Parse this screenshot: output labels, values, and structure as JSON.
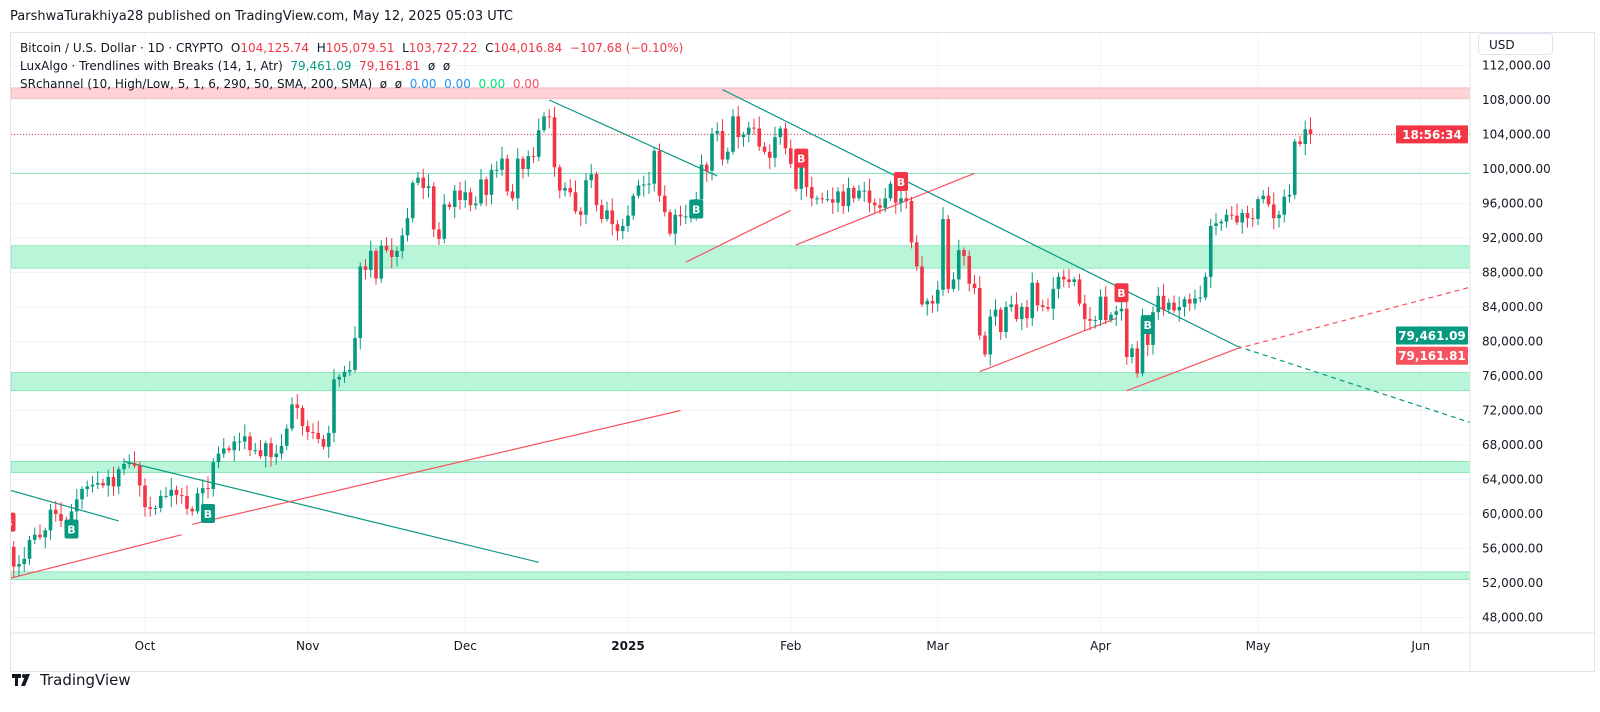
{
  "header": {
    "published": "ParshwaTurakhiya28 published on TradingView.com, May 12, 2025 05:03 UTC"
  },
  "legend": {
    "symbol": "Bitcoin / U.S. Dollar · 1D · CRYPTO",
    "o_label": "O",
    "o": "104,125.74",
    "h_label": "H",
    "h": "105,079.51",
    "l_label": "L",
    "l": "103,727.22",
    "c_label": "C",
    "c": "104,016.84",
    "change": "−107.68 (−0.10%)",
    "ind1_name": "LuxAlgo · Trendlines with Breaks (14, 1, Atr)",
    "ind1_v1": "79,461.09",
    "ind1_v2": "79,161.81",
    "ind1_v3": "ø",
    "ind1_v4": "ø",
    "ind2_name": "SRchannel (10, High/Low, 5, 1, 6, 290, 50, SMA, 200, SMA)",
    "ind2_v1": "ø",
    "ind2_v2": "ø",
    "ind2_v3": "0.00",
    "ind2_v4": "0.00",
    "ind2_v5": "0.00",
    "ind2_v6": "0.00"
  },
  "currency_button": "USD",
  "price_labels": {
    "countdown": "18:56:34",
    "upper_trend": "79,461.09",
    "lower_trend": "79,161.81"
  },
  "footer": {
    "brand": "TradingView"
  },
  "colors": {
    "up": "#089981",
    "down": "#f23645",
    "zone": "#b9f6d9",
    "zone_edge": "#7fe0b0",
    "resistance_zone": "#fdd3d6",
    "teal_line": "#089981",
    "red_line": "#f7525f"
  },
  "chart_data": {
    "type": "candlestick",
    "x_ticks": [
      {
        "label": "Oct",
        "date": "2024-10-01",
        "bold": false
      },
      {
        "label": "Nov",
        "date": "2024-11-01",
        "bold": false
      },
      {
        "label": "Dec",
        "date": "2024-12-01",
        "bold": false
      },
      {
        "label": "2025",
        "date": "2025-01-01",
        "bold": true
      },
      {
        "label": "Feb",
        "date": "2025-02-01",
        "bold": false
      },
      {
        "label": "Mar",
        "date": "2025-03-01",
        "bold": false
      },
      {
        "label": "Apr",
        "date": "2025-04-01",
        "bold": false
      },
      {
        "label": "May",
        "date": "2025-05-01",
        "bold": false
      },
      {
        "label": "Jun",
        "date": "2025-06-01",
        "bold": false
      }
    ],
    "y_ticks": [
      "112,000.00",
      "108,000.00",
      "104,000.00",
      "100,000.00",
      "96,000.00",
      "92,000.00",
      "88,000.00",
      "84,000.00",
      "80,000.00",
      "76,000.00",
      "72,000.00",
      "68,000.00",
      "64,000.00",
      "60,000.00",
      "56,000.00",
      "52,000.00",
      "48,000.00"
    ],
    "ylim": [
      45000,
      113000
    ],
    "current_price": 104016.84,
    "daily_closes": [
      {
        "month": "2024-09",
        "first_day": 5,
        "closes": [
          56200,
          53900,
          54200,
          54800,
          57000,
          57600,
          57300,
          58100,
          60500,
          60000,
          59200,
          58200,
          60300,
          61700,
          62900,
          63200,
          63400,
          63600,
          63300,
          64300,
          63200,
          65200,
          65800,
          65900,
          65600,
          63300
        ]
      },
      {
        "month": "2024-10",
        "first_day": 1,
        "closes": [
          60800,
          60600,
          60700,
          62100,
          62100,
          62800,
          62200,
          62100,
          60600,
          60300,
          62400,
          63000,
          62900,
          66000,
          67000,
          67600,
          67400,
          68400,
          68400,
          69000,
          67400,
          67400,
          66700,
          68200,
          66600,
          67000,
          67900,
          69900,
          72700,
          72300,
          70200
        ]
      },
      {
        "month": "2024-11",
        "first_day": 1,
        "closes": [
          69500,
          69400,
          68700,
          67800,
          69400,
          75600,
          75900,
          76500,
          76700,
          80400,
          88700,
          88300,
          90500,
          87300,
          91100,
          90600,
          89800,
          90500,
          92300,
          94300,
          98400,
          99000,
          97800,
          98000,
          93000,
          91900,
          95900,
          95600,
          97500,
          96400
        ]
      },
      {
        "month": "2024-12",
        "first_day": 1,
        "closes": [
          97300,
          95800,
          96000,
          98800,
          97000,
          99900,
          99900,
          101200,
          97400,
          96600,
          101200,
          100000,
          101500,
          101400,
          104500,
          106100,
          106000,
          100200,
          97500,
          97800,
          97300,
          95100,
          94700,
          98700,
          99400,
          95800,
          94200,
          95200,
          93600,
          92800,
          93400
        ]
      },
      {
        "month": "2025-01",
        "first_day": 1,
        "closes": [
          94600,
          96900,
          98100,
          98200,
          98300,
          102100,
          96900,
          95000,
          92500,
          94700,
          94500,
          94500,
          94500,
          96500,
          100500,
          99800,
          104100,
          104400,
          101100,
          102000,
          106100,
          103700,
          104000,
          104800,
          104700,
          102600,
          102000,
          101300,
          103700,
          104700,
          102400
        ]
      },
      {
        "month": "2025-02",
        "first_day": 1,
        "closes": [
          100600,
          97700,
          101400,
          97900,
          96600,
          96600,
          96500,
          96500,
          96100,
          97400,
          95700,
          97800,
          96600,
          97500,
          97500,
          96100,
          95800,
          95500,
          96600,
          98300,
          96100,
          96600,
          96300,
          91500,
          88700,
          84300,
          84700,
          84400
        ]
      },
      {
        "month": "2025-03",
        "first_day": 1,
        "closes": [
          86000,
          94200,
          86100,
          87200,
          90600,
          89900,
          86700,
          86200,
          80700,
          78500,
          82900,
          83700,
          81100,
          84000,
          84300,
          82600,
          84000,
          82700,
          86800,
          84200,
          84000,
          83800,
          86100,
          87500,
          87200,
          86900,
          87200,
          84400,
          82600,
          82400,
          82500
        ]
      },
      {
        "month": "2025-04",
        "first_day": 1,
        "closes": [
          85200,
          82500,
          83100,
          83500,
          83800,
          78200,
          79200,
          76300,
          82600,
          79600,
          83400,
          85300,
          83700,
          84500,
          83600,
          84000,
          84900,
          84400,
          85000,
          85100,
          87500,
          93400,
          93700,
          93900,
          94700,
          94600,
          93800,
          94900,
          94300,
          94200
        ]
      },
      {
        "month": "2025-05",
        "first_day": 1,
        "closes": [
          96500,
          96900,
          95900,
          94300,
          94700,
          96800,
          97000,
          103200,
          102900,
          104600,
          104016.84
        ]
      }
    ],
    "sr_zones": [
      {
        "top": 109400,
        "bottom": 108200,
        "kind": "resistance"
      },
      {
        "top": 91100,
        "bottom": 88500,
        "kind": "support"
      },
      {
        "top": 76400,
        "bottom": 74300,
        "kind": "support"
      },
      {
        "top": 66100,
        "bottom": 64800,
        "kind": "support"
      },
      {
        "top": 53300,
        "bottom": 52400,
        "kind": "support"
      }
    ],
    "sr_level": 99500,
    "trendlines": [
      {
        "kind": "down",
        "from": [
          "2024-09-05",
          62800
        ],
        "to": [
          "2024-09-26",
          59200
        ]
      },
      {
        "kind": "down",
        "from": [
          "2024-09-27",
          66100
        ],
        "to": [
          "2024-12-15",
          54400
        ]
      },
      {
        "kind": "down",
        "from": [
          "2024-12-17",
          108000
        ],
        "to": [
          "2025-01-18",
          99200
        ]
      },
      {
        "kind": "down",
        "from": [
          "2025-01-19",
          109200
        ],
        "to": [
          "2025-04-27",
          79461.09
        ],
        "extend_to": [
          "2025-06-26",
          67500
        ]
      },
      {
        "kind": "up",
        "from": [
          "2024-09-05",
          52500
        ],
        "to": [
          "2024-10-08",
          57600
        ]
      },
      {
        "kind": "up",
        "from": [
          "2024-10-10",
          58800
        ],
        "to": [
          "2025-01-11",
          72000
        ]
      },
      {
        "kind": "up",
        "from": [
          "2025-01-12",
          89200
        ],
        "to": [
          "2025-02-01",
          95200
        ]
      },
      {
        "kind": "up",
        "from": [
          "2025-02-02",
          91200
        ],
        "to": [
          "2025-03-08",
          99500
        ]
      },
      {
        "kind": "up",
        "from": [
          "2025-03-09",
          76500
        ],
        "to": [
          "2025-04-04",
          82700
        ]
      },
      {
        "kind": "up",
        "from": [
          "2025-04-06",
          74300
        ],
        "to": [
          "2025-04-27",
          79161.81
        ],
        "extend_to": [
          "2025-06-26",
          88800
        ]
      }
    ],
    "break_labels": [
      {
        "text": "B",
        "kind": "bearish",
        "date": "2024-09-05",
        "price": 59000
      },
      {
        "text": "B",
        "kind": "bullish",
        "date": "2024-09-17",
        "price": 58200
      },
      {
        "text": "B",
        "kind": "bullish",
        "date": "2024-10-13",
        "price": 60000
      },
      {
        "text": "B",
        "kind": "bullish",
        "date": "2025-01-14",
        "price": 95300
      },
      {
        "text": "B",
        "kind": "bearish",
        "date": "2025-02-03",
        "price": 101200
      },
      {
        "text": "B",
        "kind": "bearish",
        "date": "2025-02-22",
        "price": 98500
      },
      {
        "text": "B",
        "kind": "bearish",
        "date": "2025-04-05",
        "price": 85600
      },
      {
        "text": "B",
        "kind": "bullish",
        "date": "2025-04-10",
        "price": 81900
      }
    ]
  }
}
